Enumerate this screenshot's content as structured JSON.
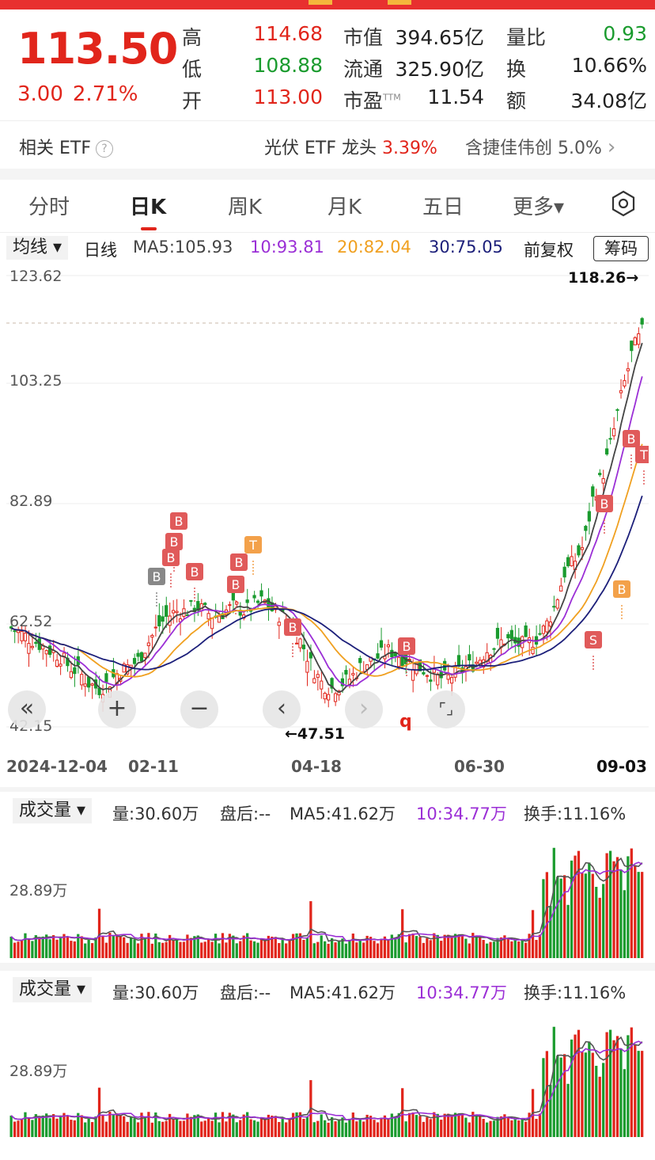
{
  "quote": {
    "price": "113.50",
    "change": "3.00",
    "change_pct": "2.71%",
    "rows": [
      {
        "label": "高",
        "value": "114.68",
        "color": "red"
      },
      {
        "label": "低",
        "value": "108.88",
        "color": "green"
      },
      {
        "label": "开",
        "value": "113.00",
        "color": "red"
      }
    ],
    "mid": [
      {
        "label": "市值",
        "value": "394.65亿"
      },
      {
        "label": "流通",
        "value": "325.90亿"
      },
      {
        "label": "市盈",
        "sup": "TTM",
        "value": "11.54"
      }
    ],
    "right": [
      {
        "label": "量比",
        "value": "0.93",
        "color": "green"
      },
      {
        "label": "换",
        "value": "10.66%",
        "color": "dark"
      },
      {
        "label": "额",
        "value": "34.08亿",
        "color": "dark"
      }
    ]
  },
  "etf": {
    "title": "相关 ETF",
    "help": "?",
    "item_name": "光伏 ETF 龙头",
    "item_pct": "3.39%",
    "holding": "含捷佳伟创",
    "holding_pct": "5.0%",
    "chevron": "›"
  },
  "tabs": [
    {
      "label": "分时"
    },
    {
      "label": "日K",
      "active": true
    },
    {
      "label": "周K"
    },
    {
      "label": "月K"
    },
    {
      "label": "五日"
    },
    {
      "label": "更多▾"
    }
  ],
  "ma_bar": {
    "selector": "均线 ▾",
    "period": "日线",
    "ma5": "MA5:105.93",
    "ma10": "10:93.81",
    "ma20": "20:82.04",
    "ma30": "30:75.05",
    "adjust": "前复权",
    "chips": "筹码"
  },
  "colors": {
    "up": "#e1251b",
    "down": "#1a9b2e",
    "ma5": "#444444",
    "ma10": "#9b2fd6",
    "ma20": "#f0a020",
    "ma30": "#1c1f7a"
  },
  "chart_data": {
    "type": "candlestick",
    "y_ticks": [
      "123.62",
      "103.25",
      "82.89",
      "62.52",
      "42.15"
    ],
    "ylim": [
      42.15,
      123.62
    ],
    "x_ticks": [
      "2024-12-04",
      "02-11",
      "04-18",
      "06-30",
      "09-03"
    ],
    "high_label": "118.26→",
    "low_label": "←47.51",
    "markers": [
      "B",
      "B",
      "B",
      "B",
      "B",
      "B",
      "T",
      "B",
      "B",
      "B",
      "B",
      "B",
      "T",
      "B",
      "S"
    ],
    "close_series": [
      60,
      59,
      58,
      57,
      56,
      55,
      53,
      52,
      50,
      49,
      50,
      52,
      53,
      54,
      57,
      60,
      62,
      63,
      63,
      64,
      63,
      62,
      63,
      64,
      63,
      64,
      65,
      63,
      62,
      60,
      57,
      53,
      50,
      49,
      50,
      51,
      53,
      54,
      55,
      56,
      55,
      54,
      53,
      52,
      51,
      51,
      52,
      53,
      54,
      56,
      57,
      58,
      57,
      57,
      58,
      60,
      64,
      70,
      72,
      75,
      84,
      88,
      95,
      103,
      110,
      113.5
    ]
  },
  "volume_panels": [
    {
      "selector": "成交量 ▾",
      "vol": "量:30.60万",
      "after": "盘后:--",
      "ma5": "MA5:41.62万",
      "ma10": "10:34.77万",
      "turnover": "换手:11.16%",
      "axis": "28.89万"
    },
    {
      "selector": "成交量 ▾",
      "vol": "量:30.60万",
      "after": "盘后:--",
      "ma5": "MA5:41.62万",
      "ma10": "10:34.77万",
      "turnover": "换手:11.16%",
      "axis": "28.89万"
    }
  ],
  "controls": [
    "«",
    "+",
    "−",
    "‹",
    "›",
    "⌜⌟"
  ]
}
